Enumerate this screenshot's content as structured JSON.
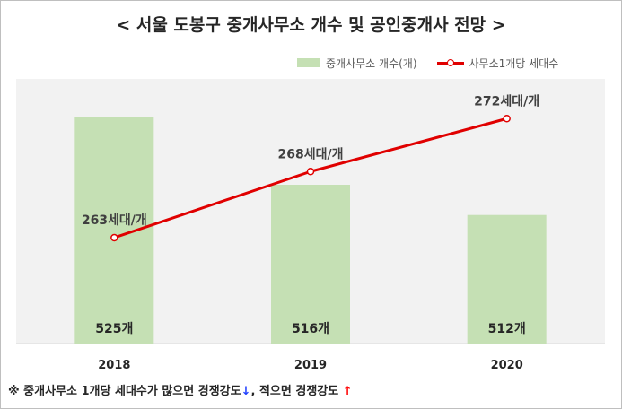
{
  "title": "< 서울 도봉구 중개사무소 개수 및 공인중개사 전망 >",
  "note": {
    "text_before": "※ 중개사무소 1개당 세대수가 많으면 경쟁강도",
    "down_arrow": "↓",
    "text_middle": ", 적으면 경쟁강도",
    "up_arrow": "↑"
  },
  "colors": {
    "bar": "#c5e0b4",
    "line": "#e00000",
    "plot_background": "#f2f2f2"
  },
  "chart_data": {
    "type": "bar",
    "categories": [
      "2018",
      "2019",
      "2020"
    ],
    "series": [
      {
        "name": "중개사무소 개수(개)",
        "kind": "bar",
        "values": [
          525,
          516,
          512
        ],
        "labels": [
          "525개",
          "516개",
          "512개"
        ]
      },
      {
        "name": "사무소1개당 세대수",
        "kind": "line",
        "values": [
          263,
          268,
          272
        ],
        "labels": [
          "263세대/개",
          "268세대/개",
          "272세대/개"
        ]
      }
    ],
    "bar_axis_range": [
      495,
      530
    ],
    "line_axis_range": [
      255,
      275
    ],
    "axes_visible": false,
    "grid": false,
    "legend": "top-right"
  }
}
